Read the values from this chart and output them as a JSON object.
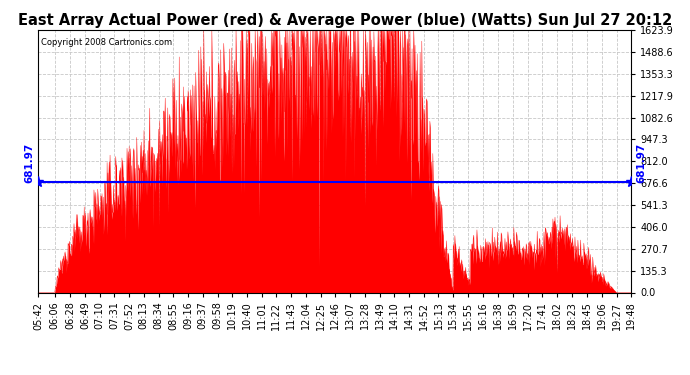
{
  "title": "East Array Actual Power (red) & Average Power (blue) (Watts) Sun Jul 27 20:12",
  "copyright": "Copyright 2008 Cartronics.com",
  "avg_power": 681.97,
  "ymax": 1623.9,
  "yticks": [
    0.0,
    135.3,
    270.7,
    406.0,
    541.3,
    676.6,
    812.0,
    947.3,
    1082.6,
    1217.9,
    1353.3,
    1488.6,
    1623.9
  ],
  "background_color": "#ffffff",
  "grid_color": "#c8c8c8",
  "fill_color": "#ff0000",
  "avg_line_color": "#0000ff",
  "title_fontsize": 10.5,
  "tick_fontsize": 7,
  "x_tick_labels": [
    "05:42",
    "06:06",
    "06:28",
    "06:49",
    "07:10",
    "07:31",
    "07:52",
    "08:13",
    "08:34",
    "08:55",
    "09:16",
    "09:37",
    "09:58",
    "10:19",
    "10:40",
    "11:01",
    "11:22",
    "11:43",
    "12:04",
    "12:25",
    "12:46",
    "13:07",
    "13:28",
    "13:49",
    "14:10",
    "14:31",
    "14:52",
    "15:13",
    "15:34",
    "15:55",
    "16:16",
    "16:38",
    "16:59",
    "17:20",
    "17:41",
    "18:02",
    "18:23",
    "18:45",
    "19:06",
    "19:27",
    "19:48"
  ]
}
